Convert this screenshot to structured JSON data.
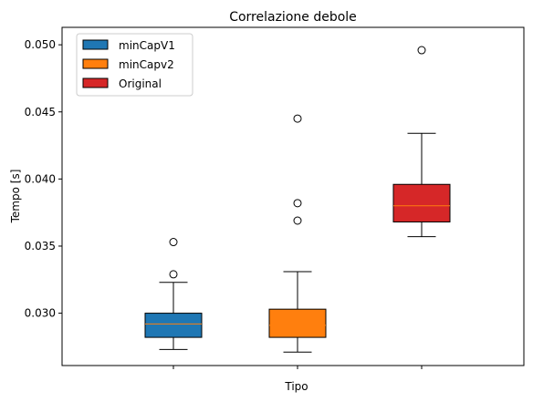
{
  "chart_data": {
    "type": "box",
    "title": "Correlazione debole",
    "xlabel": "Tipo",
    "ylabel": "Tempo [s]",
    "ylim": [
      0.0261,
      0.0513
    ],
    "yticks": [
      "0.030",
      "0.035",
      "0.040",
      "0.045",
      "0.050"
    ],
    "ytick_values": [
      0.03,
      0.035,
      0.04,
      0.045,
      0.05
    ],
    "legend_position": "upper-left",
    "median_color": "#ff7f0e",
    "series": [
      {
        "name": "minCapV1",
        "color": "#1f77b4",
        "whisker_low": 0.0273,
        "q1": 0.0282,
        "median": 0.0292,
        "q3": 0.03,
        "whisker_high": 0.0323,
        "outliers": [
          0.0329,
          0.0353
        ]
      },
      {
        "name": "minCapv2",
        "color": "#ff7f0e",
        "whisker_low": 0.0271,
        "q1": 0.0282,
        "median": 0.0291,
        "q3": 0.0303,
        "whisker_high": 0.0331,
        "outliers": [
          0.0369,
          0.0382,
          0.0445
        ]
      },
      {
        "name": "Original",
        "color": "#d62728",
        "whisker_low": 0.0357,
        "q1": 0.0368,
        "median": 0.038,
        "q3": 0.0396,
        "whisker_high": 0.0434,
        "outliers": [
          0.0496
        ]
      }
    ]
  }
}
